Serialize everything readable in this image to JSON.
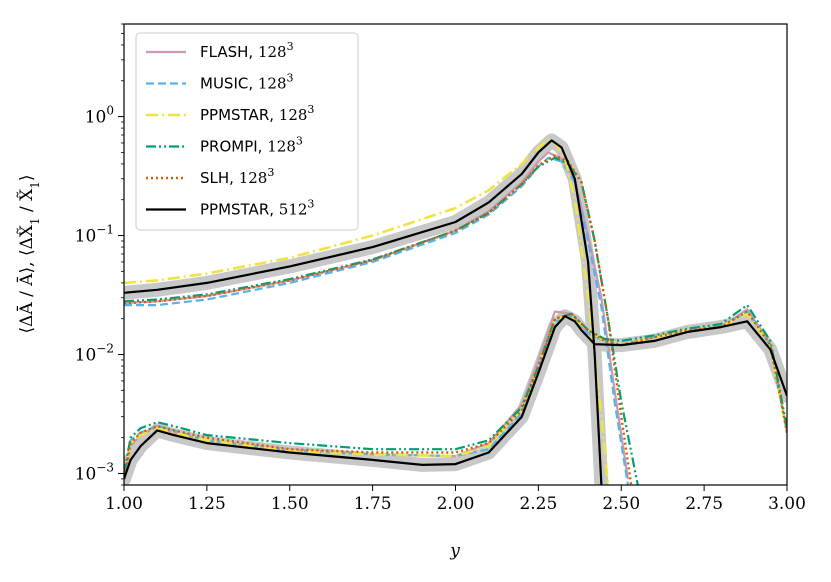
{
  "chart_data": {
    "type": "line",
    "xlabel": "y",
    "ylabel_main": "⟨ΔĀ / Ā⟩, ⟨ΔX̃",
    "ylabel_sub1": "1",
    "ylabel_mid": " / X̃",
    "ylabel_sub2": "1",
    "ylabel_end": "⟩",
    "xlim": [
      1.0,
      3.0
    ],
    "ylim": [
      0.0008,
      6.0
    ],
    "yscale": "log",
    "grid": false,
    "legend_position": "top-left",
    "x_ticks": [
      "1.00",
      "1.25",
      "1.50",
      "1.75",
      "2.00",
      "2.25",
      "2.50",
      "2.75",
      "3.00"
    ],
    "y_ticks": [
      {
        "base": "10",
        "exp": "0",
        "value": 1
      },
      {
        "base": "10",
        "exp": "−1",
        "value": 0.1
      },
      {
        "base": "10",
        "exp": "−2",
        "value": 0.01
      },
      {
        "base": "10",
        "exp": "−3",
        "value": 0.001
      }
    ],
    "series": [
      {
        "name": "FLASH, ",
        "res_base": "128",
        "res_exp": "3",
        "color": "#cc99b3",
        "dash": "",
        "width": 2.2,
        "upper": {
          "x": [
            1.0,
            1.1,
            1.25,
            1.5,
            1.75,
            2.0,
            2.1,
            2.2,
            2.25,
            2.28,
            2.32,
            2.36,
            2.4,
            2.44,
            2.48,
            2.52
          ],
          "y": [
            0.027,
            0.028,
            0.031,
            0.042,
            0.062,
            0.11,
            0.16,
            0.28,
            0.42,
            0.5,
            0.44,
            0.3,
            0.1,
            0.03,
            0.005,
            0.0009
          ]
        },
        "lower": {
          "x": [
            1.0,
            1.02,
            1.05,
            1.1,
            1.15,
            1.25,
            1.5,
            1.75,
            2.0,
            2.1,
            2.2,
            2.25,
            2.3,
            2.35,
            2.4,
            2.45,
            2.5,
            2.6,
            2.7,
            2.8,
            2.88,
            2.95,
            3.0
          ],
          "y": [
            0.0009,
            0.0017,
            0.0021,
            0.0025,
            0.0022,
            0.0019,
            0.0016,
            0.00145,
            0.0014,
            0.0018,
            0.0038,
            0.009,
            0.023,
            0.022,
            0.015,
            0.013,
            0.012,
            0.014,
            0.016,
            0.017,
            0.024,
            0.012,
            0.0022
          ]
        }
      },
      {
        "name": "MUSIC, ",
        "res_base": "128",
        "res_exp": "3",
        "color": "#56b4e9",
        "dash": "8 4",
        "width": 2.2,
        "upper": {
          "x": [
            1.0,
            1.1,
            1.25,
            1.5,
            1.75,
            2.0,
            2.1,
            2.2,
            2.25,
            2.28,
            2.32,
            2.36,
            2.4,
            2.44,
            2.48,
            2.52
          ],
          "y": [
            0.026,
            0.026,
            0.029,
            0.04,
            0.06,
            0.105,
            0.15,
            0.26,
            0.38,
            0.45,
            0.42,
            0.28,
            0.09,
            0.025,
            0.004,
            0.0008
          ]
        },
        "lower": {
          "x": [
            1.0,
            1.02,
            1.05,
            1.1,
            1.15,
            1.25,
            1.5,
            1.75,
            2.0,
            2.1,
            2.2,
            2.25,
            2.3,
            2.35,
            2.4,
            2.45,
            2.5,
            2.6,
            2.7,
            2.8,
            2.88,
            2.95,
            3.0
          ],
          "y": [
            0.0009,
            0.0019,
            0.0022,
            0.0025,
            0.0023,
            0.0019,
            0.00155,
            0.00145,
            0.0014,
            0.0016,
            0.0032,
            0.0075,
            0.019,
            0.021,
            0.015,
            0.013,
            0.012,
            0.014,
            0.016,
            0.017,
            0.023,
            0.012,
            0.0022
          ]
        }
      },
      {
        "name": "PPMSTAR, ",
        "res_base": "128",
        "res_exp": "3",
        "color": "#f0e442",
        "dash": "12 4 2 4",
        "width": 2.6,
        "upper": {
          "x": [
            1.0,
            1.1,
            1.25,
            1.5,
            1.75,
            2.0,
            2.1,
            2.2,
            2.25,
            2.28,
            2.3,
            2.33,
            2.36,
            2.4,
            2.44,
            2.46
          ],
          "y": [
            0.04,
            0.042,
            0.048,
            0.065,
            0.1,
            0.17,
            0.24,
            0.4,
            0.55,
            0.64,
            0.6,
            0.45,
            0.2,
            0.03,
            0.003,
            0.0008
          ]
        },
        "lower": {
          "x": [
            1.0,
            1.02,
            1.05,
            1.1,
            1.15,
            1.25,
            1.5,
            1.75,
            2.0,
            2.1,
            2.2,
            2.25,
            2.3,
            2.35,
            2.4,
            2.45,
            2.5,
            2.6,
            2.7,
            2.8,
            2.88,
            2.95,
            3.0
          ],
          "y": [
            0.0009,
            0.0018,
            0.0021,
            0.0024,
            0.0022,
            0.0019,
            0.00155,
            0.00145,
            0.0014,
            0.0017,
            0.0035,
            0.008,
            0.02,
            0.021,
            0.016,
            0.013,
            0.012,
            0.014,
            0.016,
            0.017,
            0.022,
            0.012,
            0.0022
          ]
        }
      },
      {
        "name": "PROMPI, ",
        "res_base": "128",
        "res_exp": "3",
        "color": "#009e73",
        "dash": "10 3 2 3 2 3",
        "width": 2.2,
        "upper": {
          "x": [
            1.0,
            1.1,
            1.25,
            1.5,
            1.75,
            2.0,
            2.1,
            2.2,
            2.25,
            2.3,
            2.34,
            2.38,
            2.42,
            2.46,
            2.5,
            2.55
          ],
          "y": [
            0.028,
            0.029,
            0.032,
            0.043,
            0.063,
            0.11,
            0.155,
            0.27,
            0.38,
            0.45,
            0.4,
            0.28,
            0.09,
            0.02,
            0.004,
            0.0008
          ]
        },
        "lower": {
          "x": [
            1.0,
            1.02,
            1.05,
            1.1,
            1.15,
            1.25,
            1.5,
            1.75,
            2.0,
            2.1,
            2.2,
            2.25,
            2.3,
            2.35,
            2.4,
            2.45,
            2.5,
            2.6,
            2.7,
            2.8,
            2.88,
            2.95,
            3.0
          ],
          "y": [
            0.001,
            0.002,
            0.0024,
            0.0027,
            0.0025,
            0.0021,
            0.0018,
            0.0016,
            0.0016,
            0.0019,
            0.0036,
            0.008,
            0.02,
            0.022,
            0.016,
            0.0135,
            0.013,
            0.0145,
            0.0165,
            0.018,
            0.026,
            0.013,
            0.0024
          ]
        }
      },
      {
        "name": "SLH, ",
        "res_base": "128",
        "res_exp": "3",
        "color": "#d55e00",
        "dash": "2 3",
        "width": 2.4,
        "upper": {
          "x": [
            1.0,
            1.1,
            1.25,
            1.5,
            1.75,
            2.0,
            2.1,
            2.2,
            2.25,
            2.3,
            2.34,
            2.38,
            2.42,
            2.46,
            2.5,
            2.53
          ],
          "y": [
            0.027,
            0.028,
            0.031,
            0.042,
            0.062,
            0.11,
            0.155,
            0.27,
            0.39,
            0.47,
            0.42,
            0.28,
            0.09,
            0.02,
            0.003,
            0.0008
          ]
        },
        "lower": {
          "x": [
            1.0,
            1.02,
            1.05,
            1.1,
            1.15,
            1.25,
            1.5,
            1.75,
            2.0,
            2.1,
            2.2,
            2.25,
            2.3,
            2.35,
            2.4,
            2.45,
            2.5,
            2.6,
            2.7,
            2.8,
            2.88,
            2.95,
            3.0
          ],
          "y": [
            0.0009,
            0.0018,
            0.0022,
            0.0025,
            0.0023,
            0.002,
            0.0016,
            0.0015,
            0.0015,
            0.0018,
            0.0034,
            0.0078,
            0.02,
            0.022,
            0.016,
            0.013,
            0.012,
            0.014,
            0.016,
            0.017,
            0.023,
            0.012,
            0.0022
          ]
        }
      },
      {
        "name": "PPMSTAR, ",
        "res_base": "512",
        "res_exp": "3",
        "color": "#000000",
        "dash": "",
        "width": 2.2,
        "upper": {
          "x": [
            1.0,
            1.1,
            1.25,
            1.5,
            1.75,
            2.0,
            2.1,
            2.2,
            2.25,
            2.29,
            2.32,
            2.36,
            2.4,
            2.42,
            2.44
          ],
          "y": [
            0.033,
            0.035,
            0.04,
            0.055,
            0.08,
            0.13,
            0.19,
            0.33,
            0.5,
            0.63,
            0.55,
            0.3,
            0.06,
            0.01,
            0.0008
          ]
        },
        "lower": {
          "x": [
            1.0,
            1.02,
            1.05,
            1.1,
            1.15,
            1.25,
            1.5,
            1.75,
            1.9,
            2.0,
            2.1,
            2.2,
            2.25,
            2.3,
            2.33,
            2.36,
            2.38,
            2.42,
            2.5,
            2.6,
            2.7,
            2.8,
            2.88,
            2.95,
            3.0
          ],
          "y": [
            0.0009,
            0.0013,
            0.0017,
            0.0023,
            0.0021,
            0.0018,
            0.0015,
            0.0013,
            0.00118,
            0.0012,
            0.0015,
            0.003,
            0.007,
            0.017,
            0.021,
            0.019,
            0.016,
            0.0122,
            0.012,
            0.013,
            0.0155,
            0.017,
            0.019,
            0.011,
            0.0045
          ]
        }
      }
    ],
    "shaded_band_color": "#c8c8c8"
  }
}
